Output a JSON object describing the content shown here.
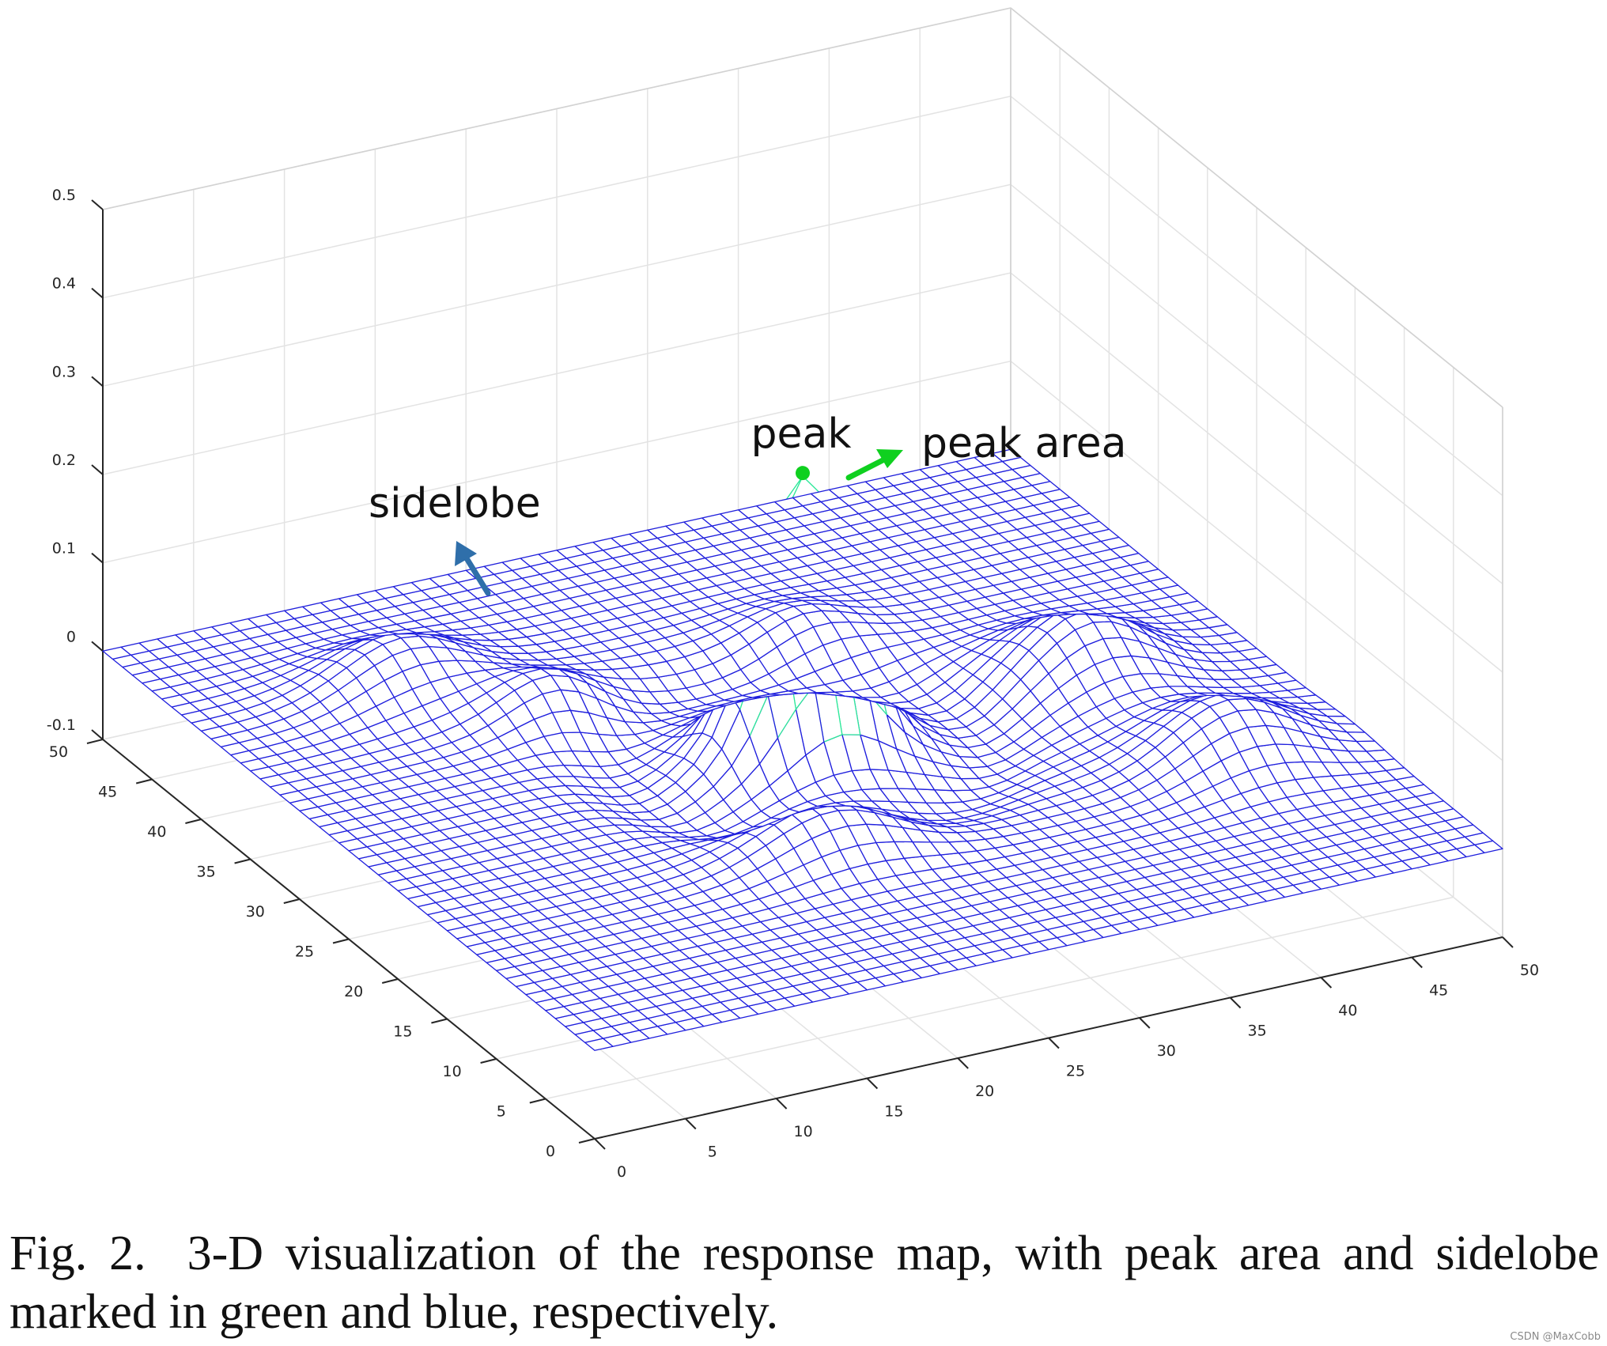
{
  "chart_data": {
    "type": "surface-3d-wireframe",
    "x_ticks": [
      "0",
      "5",
      "10",
      "15",
      "20",
      "25",
      "30",
      "35",
      "40",
      "45",
      "50"
    ],
    "y_ticks": [
      "0",
      "5",
      "10",
      "15",
      "20",
      "25",
      "30",
      "35",
      "40",
      "45",
      "50"
    ],
    "z_ticks": [
      "-0.1",
      "0",
      "0.1",
      "0.2",
      "0.3",
      "0.4",
      "0.5"
    ],
    "xlim": [
      0,
      50
    ],
    "ylim": [
      0,
      50
    ],
    "zlim": [
      -0.1,
      0.5
    ],
    "grid": true,
    "surface": {
      "grid_size": 50,
      "peak": {
        "x": 25,
        "y": 25,
        "z": 0.31
      },
      "mesh_color": "#1f1fdd",
      "peak_area_color": "#2ee89a"
    },
    "annotations": {
      "peak": "peak",
      "peak_area": "peak area",
      "sidelobe": "sidelobe"
    },
    "colors": {
      "peak_marker": "#0fd01f",
      "peak_area_arrow": "#0fd01f",
      "sidelobe_arrow": "#2f6faa"
    }
  },
  "caption": {
    "label": "Fig. 2.",
    "text": "3-D visualization of the response map, with peak area and sidelobe marked in green and blue, respectively."
  },
  "watermark": "CSDN @MaxCobb"
}
